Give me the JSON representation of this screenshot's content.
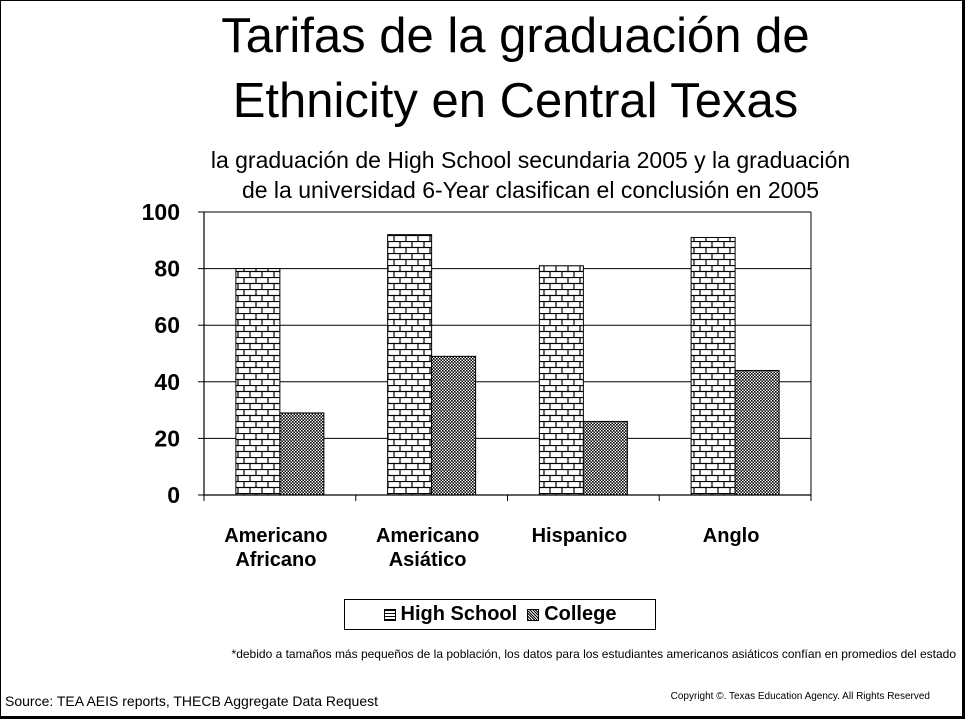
{
  "slide": {
    "title_line1": "Tarifas de la graduación de",
    "title_line2": "Ethnicity en Central Texas",
    "subtitle_line1": "la graduación de High School secundaria 2005 y la graduación",
    "subtitle_line2": "de la universidad 6-Year clasifican el conclusión en 2005",
    "footnote": "*debido a tamaños más pequeños de la población, los datos para los estudiantes americanos asiáticos confían en promedios del estado",
    "source": "Source: TEA AEIS reports, THECB Aggregate Data Request",
    "copyright": "Copyright ©. Texas Education Agency.  All Rights Reserved"
  },
  "chart_data": {
    "type": "bar",
    "categories": [
      [
        "Americano",
        "Africano"
      ],
      [
        "Americano",
        "Asiático"
      ],
      [
        "Hispanico"
      ],
      [
        "Anglo"
      ]
    ],
    "series": [
      {
        "name": "High School",
        "values": [
          80,
          92,
          81,
          91
        ],
        "pattern": "brick"
      },
      {
        "name": "College",
        "values": [
          29,
          49,
          26,
          44
        ],
        "pattern": "crosshatch"
      }
    ],
    "ylim": [
      0,
      100
    ],
    "yticks": [
      "0",
      "20",
      "40",
      "60",
      "80",
      "100"
    ],
    "grid": true,
    "legend_position": "bottom"
  },
  "colors": {
    "bars": "#000000",
    "background": "#ffffff"
  }
}
